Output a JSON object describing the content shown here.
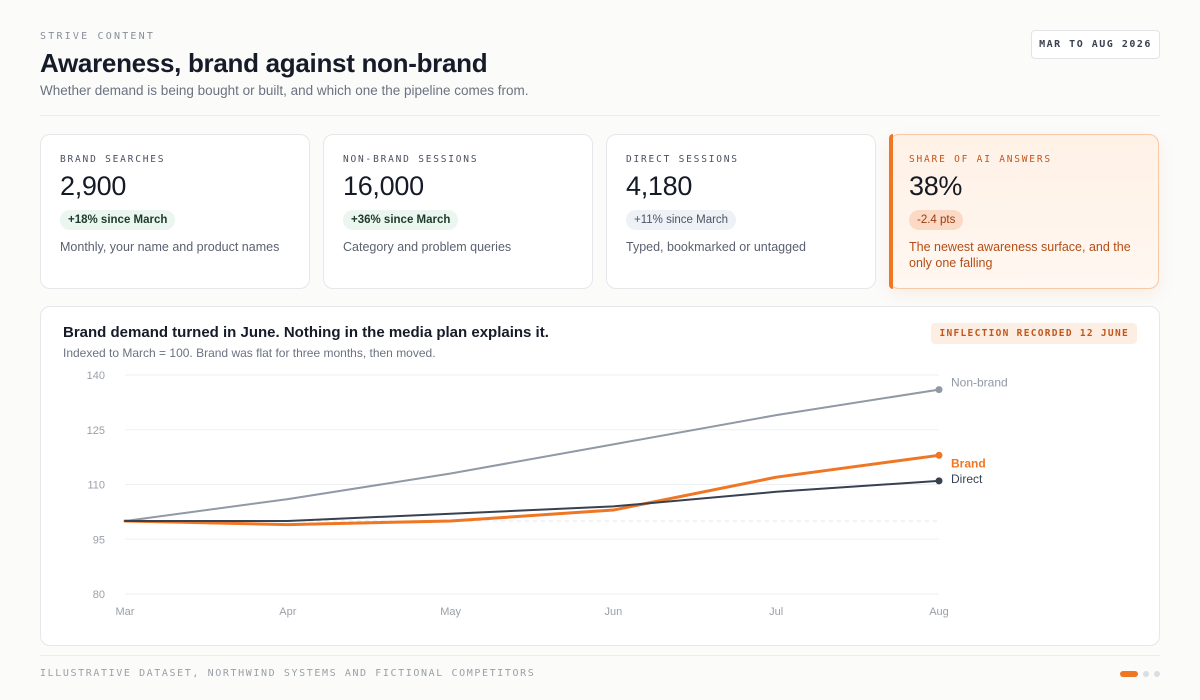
{
  "header": {
    "eyebrow": "STRIVE CONTENT",
    "title": "Awareness, brand against non-brand",
    "subtitle": "Whether demand is being bought or built, and which one the pipeline comes from.",
    "date_range": "MAR TO AUG 2026"
  },
  "kpis": [
    {
      "label": "BRAND SEARCHES",
      "value": "2,900",
      "delta": "+18% since March",
      "note": "Monthly, your name and product names",
      "tone": "green"
    },
    {
      "label": "NON-BRAND SESSIONS",
      "value": "16,000",
      "delta": "+36% since March",
      "note": "Category and problem queries",
      "tone": "green"
    },
    {
      "label": "DIRECT SESSIONS",
      "value": "4,180",
      "delta": "+11% since March",
      "note": "Typed, bookmarked or untagged",
      "tone": "grey"
    },
    {
      "label": "SHARE OF AI ANSWERS",
      "value": "38%",
      "delta": "-2.4 pts",
      "note": "The newest awareness surface, and the only one falling",
      "tone": "hot"
    }
  ],
  "chart_card": {
    "title": "Brand demand turned in June. Nothing in the media plan explains it.",
    "subtitle": "Indexed to March = 100. Brand was flat for three months, then moved.",
    "badge": "INFLECTION RECORDED 12 JUNE"
  },
  "chart_data": {
    "type": "line",
    "x": [
      "Mar",
      "Apr",
      "May",
      "Jun",
      "Jul",
      "Aug"
    ],
    "ylim": [
      80,
      140
    ],
    "yticks": [
      80,
      95,
      110,
      125,
      140
    ],
    "grid": true,
    "baseline": 100,
    "series": [
      {
        "name": "Non-brand",
        "color": "#9199a6",
        "width": 2,
        "values": [
          100,
          106,
          113,
          121,
          129,
          136
        ]
      },
      {
        "name": "Brand",
        "color": "#ef7623",
        "width": 3,
        "values": [
          100,
          99,
          100,
          103,
          112,
          118
        ]
      },
      {
        "name": "Direct",
        "color": "#374151",
        "width": 2,
        "values": [
          100,
          100,
          102,
          104,
          108,
          111
        ]
      }
    ]
  },
  "footer": {
    "text": "ILLUSTRATIVE DATASET, NORTHWIND SYSTEMS AND FICTIONAL COMPETITORS",
    "pager_count": 3,
    "pager_active": 0
  }
}
